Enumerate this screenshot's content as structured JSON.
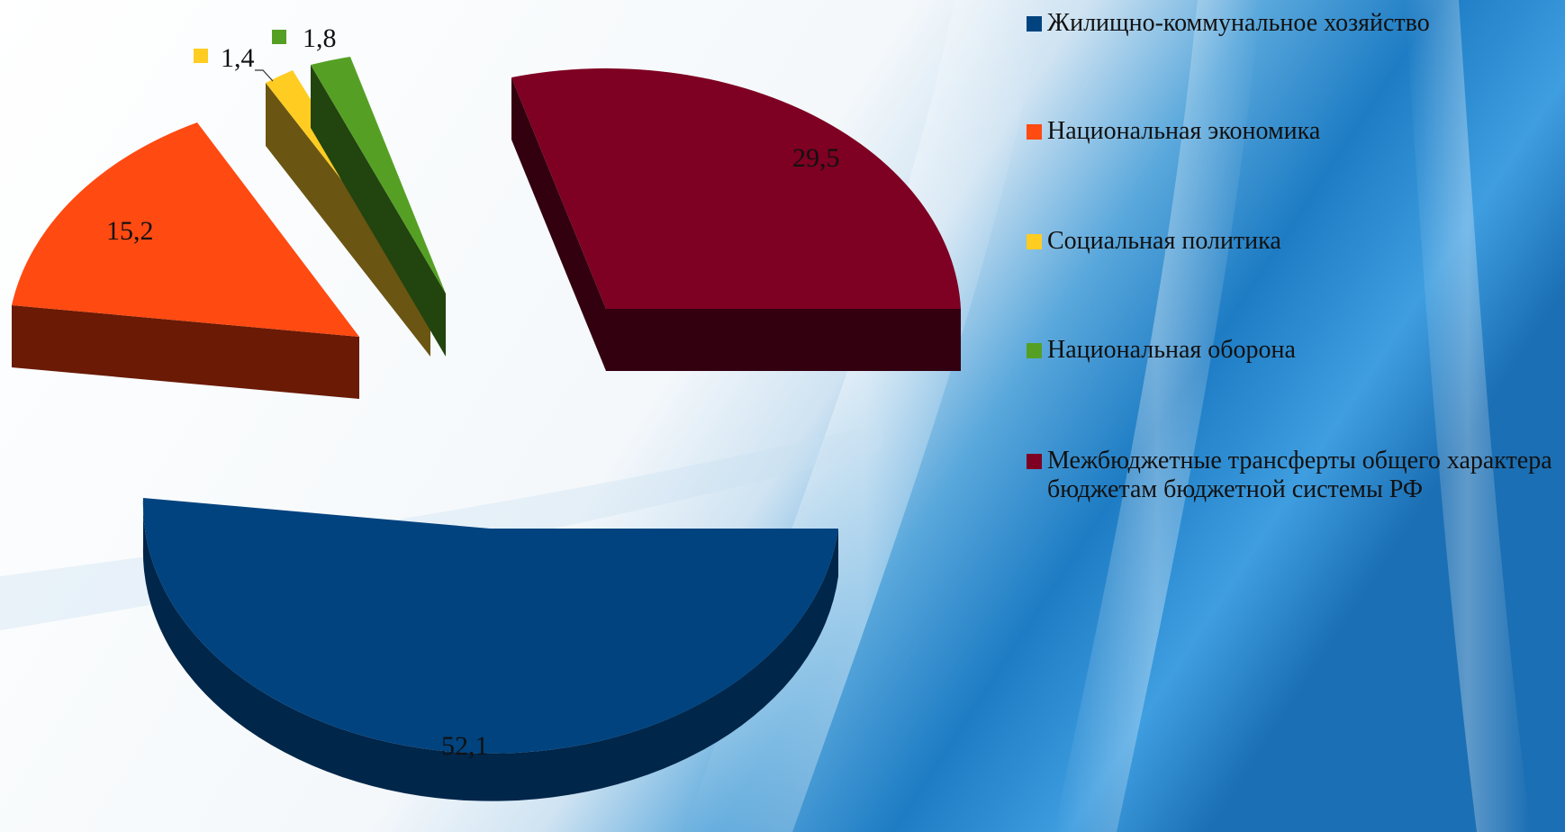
{
  "chart_data": {
    "type": "pie",
    "style": "3d-exploded",
    "title": "",
    "legend_position": "right",
    "slices": [
      {
        "label": "Жилищно-коммунальное хозяйство",
        "value_label": "52,1",
        "value": 52.1,
        "color": "#00437F",
        "side_color": "#00264A"
      },
      {
        "label": "Национальная экономика",
        "value_label": "15,2",
        "value": 15.2,
        "color": "#FF4A12",
        "side_color": "#6A1A05"
      },
      {
        "label": "Социальная политика",
        "value_label": "1,4",
        "value": 1.4,
        "color": "#FFCC22",
        "side_color": "#6A5512"
      },
      {
        "label": "Национальная оборона",
        "value_label": "1,8",
        "value": 1.8,
        "color": "#55A024",
        "side_color": "#22440F"
      },
      {
        "label": "Межбюджетные трансферты общего характера бюджетам бюджетной системы РФ",
        "value_label": "29,5",
        "value": 29.5,
        "color": "#7E0022",
        "side_color": "#330010"
      }
    ]
  }
}
